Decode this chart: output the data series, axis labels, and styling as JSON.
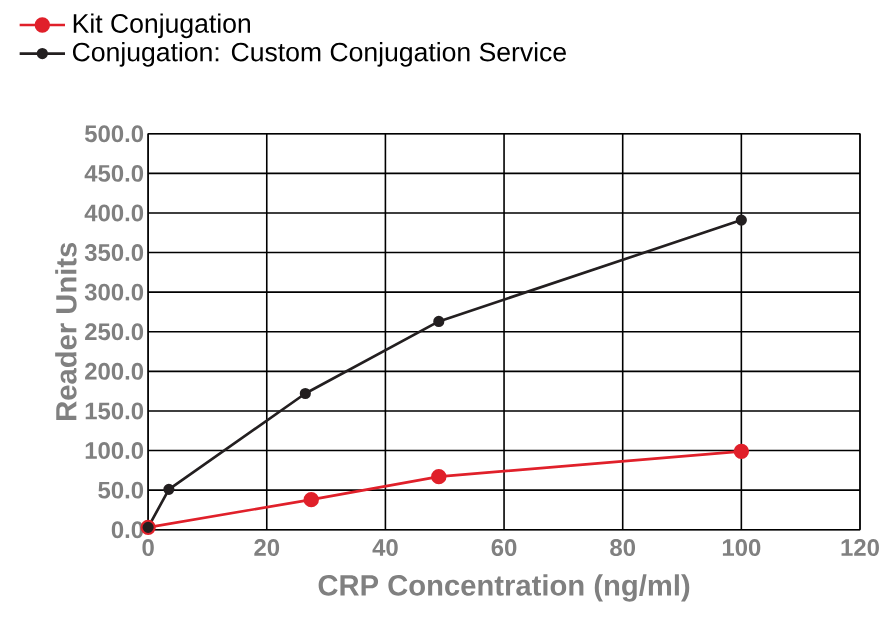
{
  "chart_data": {
    "type": "line",
    "xlabel": "CRP Concentration (ng/ml)",
    "ylabel": "Reader Units",
    "xlim": [
      0,
      120
    ],
    "xticks": [
      0,
      20,
      40,
      60,
      80,
      100,
      120
    ],
    "ylim": [
      0,
      500
    ],
    "yticks": [
      {
        "value": 0,
        "label": "0.0"
      },
      {
        "value": 50,
        "label": "50.0"
      },
      {
        "value": 100,
        "label": "100.0"
      },
      {
        "value": 150,
        "label": "150.0"
      },
      {
        "value": 200,
        "label": "200.0"
      },
      {
        "value": 250,
        "label": "250.0"
      },
      {
        "value": 300,
        "label": "300.0"
      },
      {
        "value": 350,
        "label": "350.0"
      },
      {
        "value": 400,
        "label": "400.0"
      },
      {
        "value": 450,
        "label": "450.0"
      },
      {
        "value": 500,
        "label": "500.0"
      }
    ],
    "grid": true,
    "legend": "top",
    "marker": "circle",
    "line_style": "solid",
    "series": [
      {
        "name": "Kit Conjugation",
        "color": "#e0202a",
        "x": [
          0,
          27.5,
          49,
          100
        ],
        "values": [
          3,
          38,
          67,
          99
        ]
      },
      {
        "name": "Conjugation: Custom Conjugation Service",
        "color": "#231f20",
        "x": [
          0,
          3.5,
          26.5,
          49,
          100
        ],
        "values": [
          3,
          51,
          172,
          263,
          391
        ]
      }
    ]
  }
}
